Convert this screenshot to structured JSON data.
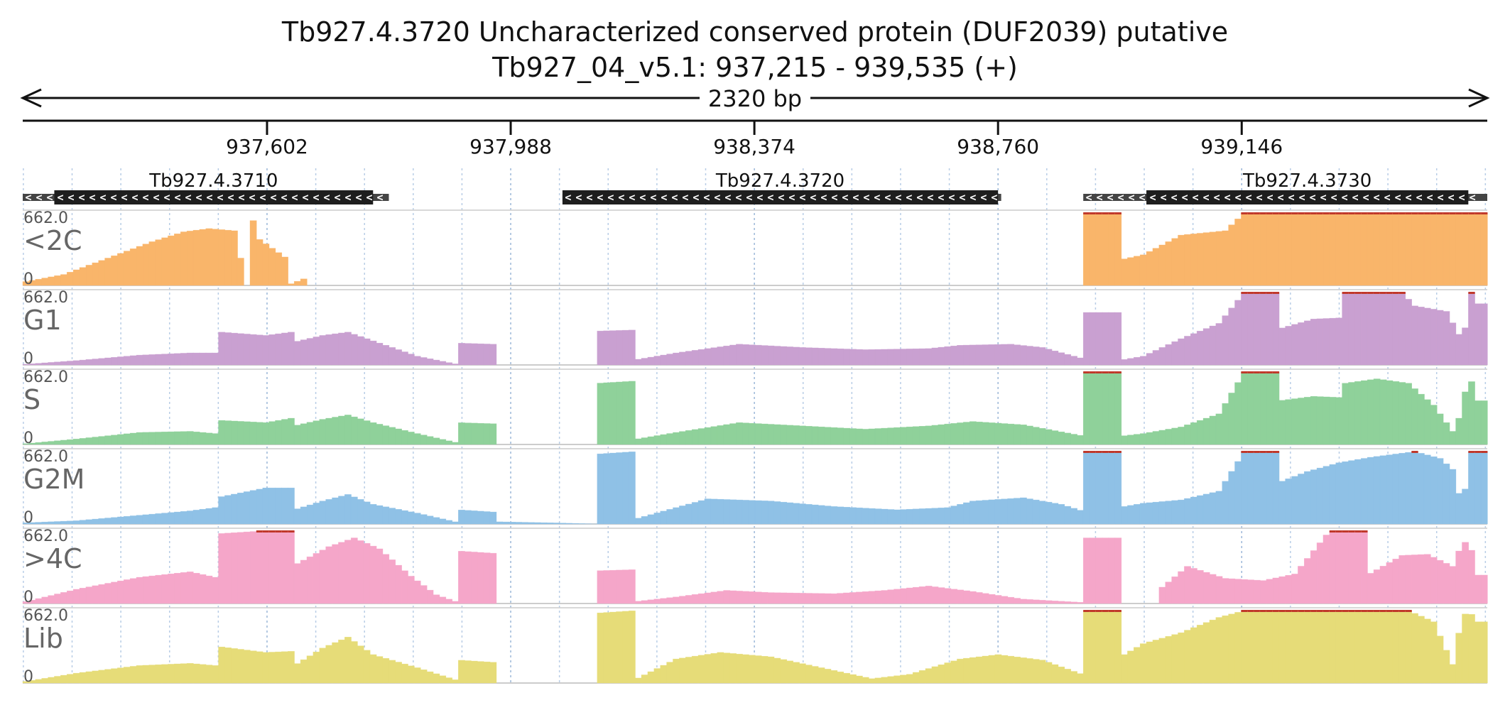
{
  "header": {
    "title": "Tb927.4.3720  Uncharacterized conserved protein (DUF2039)  putative",
    "region": "Tb927_04_v5.1: 937,215 - 939,535 (+)",
    "span": "2320 bp"
  },
  "chart_data": {
    "type": "area",
    "x_range": [
      937215,
      939535
    ],
    "x_ticks": [
      937602,
      937988,
      938374,
      938760,
      939146
    ],
    "x_tick_labels": [
      "937,602",
      "937,988",
      "938,374",
      "938,760",
      "939,146"
    ],
    "y_max_label": "662.0",
    "y_min_label": "0",
    "y_range": [
      0,
      662
    ],
    "bin_size": 10,
    "genes": [
      {
        "name": "Tb927.4.3710",
        "strand": "-",
        "start": 937215,
        "end": 937795,
        "cds_start": 937265,
        "cds_end": 937770
      },
      {
        "name": "Tb927.4.3720",
        "strand": "-",
        "start": 938070,
        "end": 938765,
        "cds_start": 938070,
        "cds_end": 938760
      },
      {
        "name": "Tb927.4.3730",
        "strand": "-",
        "start": 938895,
        "end": 939535,
        "cds_start": 938995,
        "cds_end": 939505
      }
    ],
    "series": [
      {
        "name": "<2C",
        "color": "#f9b56a",
        "profile": [
          [
            937215,
            30
          ],
          [
            937280,
            100
          ],
          [
            937350,
            250
          ],
          [
            937420,
            400
          ],
          [
            937470,
            490
          ],
          [
            937510,
            520
          ],
          [
            937550,
            500
          ],
          [
            937590,
            420
          ],
          [
            937630,
            260
          ],
          [
            937660,
            60
          ],
          [
            937665,
            0
          ],
          [
            937570,
            0
          ],
          [
            937576,
            662
          ],
          [
            937630,
            662
          ],
          [
            937633,
            0
          ],
          [
            938895,
            0
          ],
          [
            938897,
            662
          ],
          [
            938955,
            662
          ],
          [
            938958,
            240
          ],
          [
            938990,
            280
          ],
          [
            939050,
            460
          ],
          [
            939120,
            500
          ],
          [
            939150,
            662
          ],
          [
            939535,
            662
          ]
        ]
      },
      {
        "name": "G1",
        "color": "#c9a0d1",
        "profile": [
          [
            937215,
            5
          ],
          [
            937300,
            40
          ],
          [
            937400,
            90
          ],
          [
            937480,
            110
          ],
          [
            937520,
            110
          ],
          [
            937530,
            300
          ],
          [
            937600,
            270
          ],
          [
            937640,
            300
          ],
          [
            937645,
            210
          ],
          [
            937690,
            270
          ],
          [
            937730,
            300
          ],
          [
            937770,
            220
          ],
          [
            937840,
            80
          ],
          [
            937900,
            10
          ],
          [
            937905,
            200
          ],
          [
            937960,
            190
          ],
          [
            937965,
            0
          ],
          [
            938125,
            0
          ],
          [
            938127,
            310
          ],
          [
            938185,
            320
          ],
          [
            938188,
            50
          ],
          [
            938250,
            110
          ],
          [
            938350,
            190
          ],
          [
            938450,
            160
          ],
          [
            938550,
            140
          ],
          [
            938650,
            150
          ],
          [
            938700,
            180
          ],
          [
            938780,
            190
          ],
          [
            938830,
            160
          ],
          [
            938893,
            60
          ],
          [
            938897,
            480
          ],
          [
            938955,
            480
          ],
          [
            938960,
            50
          ],
          [
            938990,
            80
          ],
          [
            939050,
            240
          ],
          [
            939110,
            380
          ],
          [
            939150,
            662
          ],
          [
            939200,
            662
          ],
          [
            939205,
            330
          ],
          [
            939260,
            420
          ],
          [
            939300,
            430
          ],
          [
            939310,
            662
          ],
          [
            939400,
            662
          ],
          [
            939420,
            540
          ],
          [
            939470,
            490
          ],
          [
            939490,
            280
          ],
          [
            939500,
            340
          ],
          [
            939510,
            662
          ],
          [
            939520,
            560
          ],
          [
            939535,
            560
          ]
        ]
      },
      {
        "name": "S",
        "color": "#8fd19a",
        "profile": [
          [
            937215,
            5
          ],
          [
            937300,
            50
          ],
          [
            937400,
            110
          ],
          [
            937480,
            120
          ],
          [
            937520,
            100
          ],
          [
            937530,
            220
          ],
          [
            937600,
            200
          ],
          [
            937640,
            240
          ],
          [
            937645,
            170
          ],
          [
            937690,
            230
          ],
          [
            937730,
            270
          ],
          [
            937770,
            200
          ],
          [
            937840,
            100
          ],
          [
            937900,
            20
          ],
          [
            937905,
            200
          ],
          [
            937960,
            190
          ],
          [
            937965,
            0
          ],
          [
            938125,
            0
          ],
          [
            938127,
            560
          ],
          [
            938185,
            580
          ],
          [
            938188,
            50
          ],
          [
            938250,
            110
          ],
          [
            938350,
            200
          ],
          [
            938450,
            170
          ],
          [
            938550,
            140
          ],
          [
            938650,
            170
          ],
          [
            938720,
            210
          ],
          [
            938800,
            180
          ],
          [
            938893,
            80
          ],
          [
            938897,
            662
          ],
          [
            938955,
            662
          ],
          [
            938960,
            80
          ],
          [
            938990,
            100
          ],
          [
            939050,
            160
          ],
          [
            939110,
            280
          ],
          [
            939150,
            662
          ],
          [
            939200,
            662
          ],
          [
            939205,
            400
          ],
          [
            939260,
            440
          ],
          [
            939300,
            430
          ],
          [
            939310,
            560
          ],
          [
            939360,
            600
          ],
          [
            939410,
            560
          ],
          [
            939450,
            360
          ],
          [
            939480,
            120
          ],
          [
            939495,
            300
          ],
          [
            939505,
            662
          ],
          [
            939520,
            400
          ],
          [
            939535,
            400
          ]
        ]
      },
      {
        "name": "G2M",
        "color": "#8fc1e6",
        "profile": [
          [
            937215,
            10
          ],
          [
            937300,
            30
          ],
          [
            937400,
            80
          ],
          [
            937480,
            120
          ],
          [
            937520,
            150
          ],
          [
            937530,
            250
          ],
          [
            937600,
            330
          ],
          [
            937640,
            330
          ],
          [
            937645,
            130
          ],
          [
            937690,
            210
          ],
          [
            937730,
            270
          ],
          [
            937770,
            180
          ],
          [
            937840,
            100
          ],
          [
            937900,
            20
          ],
          [
            937905,
            130
          ],
          [
            937960,
            110
          ],
          [
            937965,
            0
          ],
          [
            937970,
            20
          ],
          [
            938060,
            10
          ],
          [
            938125,
            0
          ],
          [
            938127,
            640
          ],
          [
            938185,
            662
          ],
          [
            938188,
            50
          ],
          [
            938250,
            150
          ],
          [
            938300,
            230
          ],
          [
            938400,
            210
          ],
          [
            938500,
            160
          ],
          [
            938600,
            130
          ],
          [
            938680,
            150
          ],
          [
            938720,
            210
          ],
          [
            938800,
            240
          ],
          [
            938860,
            180
          ],
          [
            938893,
            120
          ],
          [
            938897,
            662
          ],
          [
            938955,
            662
          ],
          [
            938960,
            160
          ],
          [
            938990,
            190
          ],
          [
            939050,
            220
          ],
          [
            939110,
            300
          ],
          [
            939150,
            662
          ],
          [
            939200,
            662
          ],
          [
            939205,
            380
          ],
          [
            939250,
            480
          ],
          [
            939300,
            560
          ],
          [
            939350,
            610
          ],
          [
            939420,
            662
          ],
          [
            939460,
            600
          ],
          [
            939480,
            500
          ],
          [
            939490,
            280
          ],
          [
            939500,
            320
          ],
          [
            939505,
            662
          ],
          [
            939520,
            662
          ],
          [
            939535,
            662
          ]
        ]
      },
      {
        "name": ">4C",
        "color": "#f5a6c9",
        "profile": [
          [
            937215,
            10
          ],
          [
            937300,
            130
          ],
          [
            937400,
            240
          ],
          [
            937480,
            290
          ],
          [
            937520,
            240
          ],
          [
            937530,
            640
          ],
          [
            937590,
            662
          ],
          [
            937640,
            662
          ],
          [
            937645,
            350
          ],
          [
            937700,
            520
          ],
          [
            937740,
            600
          ],
          [
            937780,
            500
          ],
          [
            937830,
            250
          ],
          [
            937870,
            80
          ],
          [
            937900,
            20
          ],
          [
            937905,
            480
          ],
          [
            937960,
            460
          ],
          [
            937965,
            0
          ],
          [
            938125,
            0
          ],
          [
            938127,
            300
          ],
          [
            938185,
            310
          ],
          [
            938188,
            20
          ],
          [
            938250,
            60
          ],
          [
            938330,
            120
          ],
          [
            938400,
            100
          ],
          [
            938500,
            90
          ],
          [
            938580,
            120
          ],
          [
            938650,
            160
          ],
          [
            938720,
            110
          ],
          [
            938800,
            40
          ],
          [
            938893,
            10
          ],
          [
            938897,
            600
          ],
          [
            938955,
            600
          ],
          [
            938960,
            0
          ],
          [
            939015,
            0
          ],
          [
            939018,
            140
          ],
          [
            939060,
            340
          ],
          [
            939120,
            230
          ],
          [
            939180,
            210
          ],
          [
            939230,
            270
          ],
          [
            939285,
            662
          ],
          [
            939340,
            662
          ],
          [
            939345,
            260
          ],
          [
            939400,
            440
          ],
          [
            939440,
            450
          ],
          [
            939480,
            340
          ],
          [
            939490,
            480
          ],
          [
            939505,
            600
          ],
          [
            939520,
            260
          ],
          [
            939535,
            260
          ]
        ]
      },
      {
        "name": "Lib",
        "color": "#e6dc78",
        "profile": [
          [
            937215,
            10
          ],
          [
            937300,
            90
          ],
          [
            937400,
            160
          ],
          [
            937480,
            180
          ],
          [
            937520,
            160
          ],
          [
            937530,
            330
          ],
          [
            937600,
            280
          ],
          [
            937640,
            290
          ],
          [
            937645,
            160
          ],
          [
            937690,
            320
          ],
          [
            937730,
            420
          ],
          [
            937770,
            260
          ],
          [
            937840,
            140
          ],
          [
            937900,
            30
          ],
          [
            937905,
            210
          ],
          [
            937960,
            190
          ],
          [
            937965,
            0
          ],
          [
            938125,
            0
          ],
          [
            938127,
            640
          ],
          [
            938185,
            662
          ],
          [
            938188,
            40
          ],
          [
            938250,
            220
          ],
          [
            938320,
            280
          ],
          [
            938400,
            240
          ],
          [
            938480,
            140
          ],
          [
            938560,
            40
          ],
          [
            938620,
            80
          ],
          [
            938700,
            220
          ],
          [
            938760,
            260
          ],
          [
            938830,
            210
          ],
          [
            938893,
            80
          ],
          [
            938897,
            662
          ],
          [
            938955,
            662
          ],
          [
            938960,
            260
          ],
          [
            938990,
            360
          ],
          [
            939050,
            460
          ],
          [
            939110,
            600
          ],
          [
            939150,
            662
          ],
          [
            939410,
            662
          ],
          [
            939450,
            560
          ],
          [
            939480,
            170
          ],
          [
            939495,
            600
          ],
          [
            939505,
            662
          ],
          [
            939520,
            560
          ],
          [
            939535,
            560
          ]
        ]
      }
    ]
  }
}
